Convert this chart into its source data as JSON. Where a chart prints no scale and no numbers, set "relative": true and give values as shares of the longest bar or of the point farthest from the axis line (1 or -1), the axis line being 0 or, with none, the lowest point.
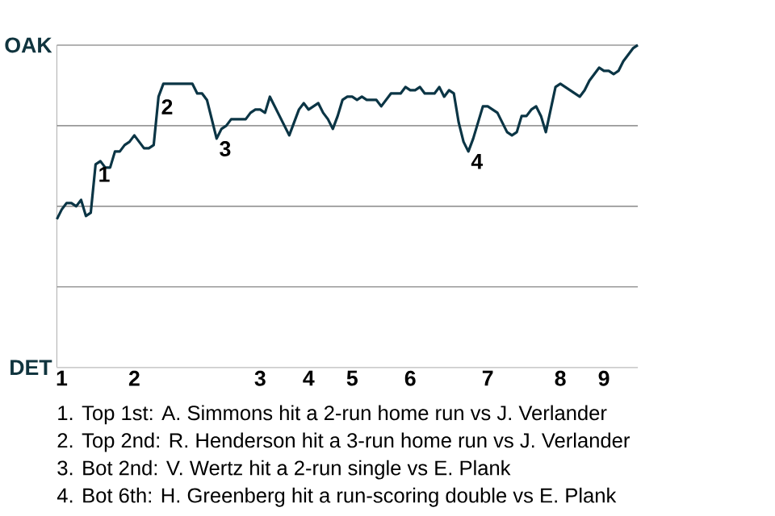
{
  "chart_data": {
    "type": "line",
    "color": "#0b3545",
    "relative": true,
    "categories": [
      null,
      "1",
      null,
      null,
      null,
      null,
      null,
      null,
      null,
      null,
      null,
      null,
      null,
      null,
      null,
      null,
      "2",
      null,
      null,
      null,
      null,
      null,
      null,
      null,
      null,
      null,
      null,
      null,
      null,
      null,
      null,
      null,
      null,
      null,
      null,
      null,
      null,
      null,
      null,
      null,
      null,
      null,
      "3",
      null,
      null,
      null,
      null,
      null,
      null,
      null,
      null,
      null,
      "4",
      null,
      null,
      null,
      null,
      null,
      null,
      null,
      null,
      "5",
      null,
      null,
      null,
      null,
      null,
      null,
      null,
      null,
      null,
      null,
      null,
      "6",
      null,
      null,
      null,
      null,
      null,
      null,
      null,
      null,
      null,
      null,
      null,
      null,
      null,
      null,
      null,
      "7",
      null,
      null,
      null,
      null,
      null,
      null,
      null,
      null,
      null,
      null,
      null,
      null,
      null,
      null,
      "8",
      null,
      null,
      null,
      null,
      null,
      null,
      null,
      null,
      "9",
      null,
      null,
      null,
      null,
      null,
      null,
      null
    ],
    "values": [
      0.46,
      0.49,
      0.51,
      0.51,
      0.5,
      0.52,
      0.47,
      0.48,
      0.63,
      0.64,
      0.62,
      0.62,
      0.67,
      0.67,
      0.69,
      0.7,
      0.72,
      0.7,
      0.68,
      0.68,
      0.69,
      0.84,
      0.88,
      0.88,
      0.88,
      0.88,
      0.88,
      0.88,
      0.88,
      0.85,
      0.85,
      0.83,
      0.77,
      0.71,
      0.74,
      0.75,
      0.77,
      0.77,
      0.77,
      0.77,
      0.79,
      0.8,
      0.8,
      0.79,
      0.84,
      0.81,
      0.78,
      0.75,
      0.72,
      0.76,
      0.8,
      0.82,
      0.8,
      0.81,
      0.82,
      0.79,
      0.77,
      0.74,
      0.78,
      0.83,
      0.84,
      0.84,
      0.83,
      0.84,
      0.83,
      0.83,
      0.83,
      0.81,
      0.83,
      0.85,
      0.85,
      0.85,
      0.87,
      0.86,
      0.86,
      0.87,
      0.85,
      0.85,
      0.85,
      0.87,
      0.84,
      0.86,
      0.85,
      0.76,
      0.7,
      0.67,
      0.71,
      0.76,
      0.81,
      0.81,
      0.8,
      0.79,
      0.76,
      0.73,
      0.72,
      0.73,
      0.78,
      0.78,
      0.8,
      0.81,
      0.78,
      0.73,
      0.8,
      0.87,
      0.88,
      0.87,
      0.86,
      0.85,
      0.84,
      0.86,
      0.89,
      0.91,
      0.93,
      0.92,
      0.92,
      0.91,
      0.92,
      0.95,
      0.97,
      0.99,
      1
    ],
    "marker": "none",
    "line_style": "solid",
    "ref_lines": [
      {
        "axis": "y",
        "value": 0,
        "color": "#cccccc",
        "label": "DET"
      },
      {
        "axis": "y",
        "value": 0.25,
        "color": "#999999"
      },
      {
        "axis": "y",
        "value": 0.5,
        "color": "#999999"
      },
      {
        "axis": "y",
        "value": 0.75,
        "color": "#999999"
      },
      {
        "axis": "y",
        "value": 1,
        "color": "#999999",
        "label": "OAK"
      }
    ],
    "annotations": [
      {
        "text": "1",
        "y": 0.63
      },
      {
        "text": "2",
        "y": 0.84
      },
      {
        "text": "3",
        "y": 0.71
      },
      {
        "text": "4",
        "y": 0.67
      },
      "1. Top 1st: A. Simmons hit a 2-run home run vs J. Verlander",
      "2. Top 2nd: R. Henderson hit a 3-run home run vs J. Verlander",
      "3. Bot 2nd: V. Wertz hit a 2-run single vs E. Plank",
      "4. Bot 6th: H. Greenberg hit a run-scoring double vs E. Plank"
    ]
  }
}
